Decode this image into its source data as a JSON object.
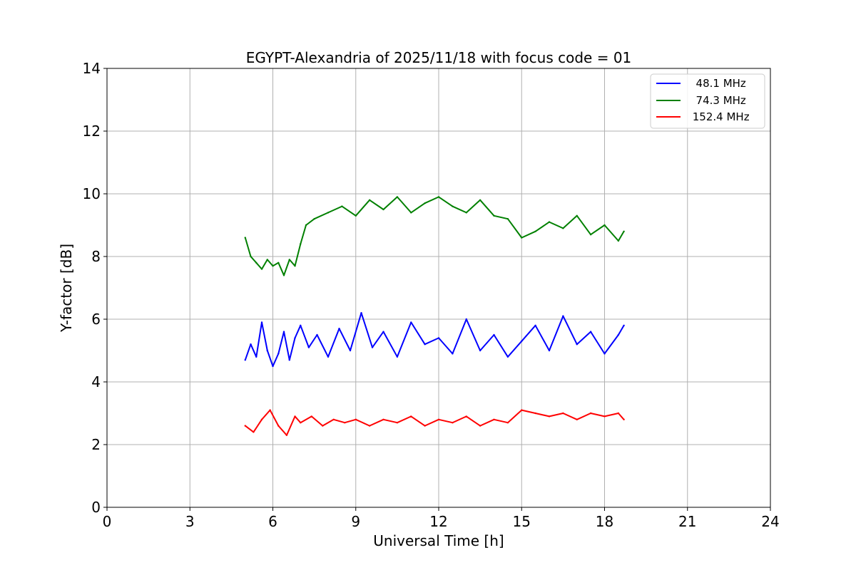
{
  "chart_data": {
    "type": "line",
    "title": "EGYPT-Alexandria of 2025/11/18 with focus code = 01",
    "xlabel": "Universal Time [h]",
    "ylabel": "Y-factor [dB]",
    "xlim": [
      0,
      24
    ],
    "ylim": [
      0,
      14
    ],
    "xticks": [
      0,
      3,
      6,
      9,
      12,
      15,
      18,
      21,
      24
    ],
    "yticks": [
      0,
      2,
      4,
      6,
      8,
      10,
      12,
      14
    ],
    "grid": true,
    "legend_position": "top-right",
    "series": [
      {
        "name": "  48.1 MHz",
        "color": "#0000ff",
        "x": [
          5.0,
          5.2,
          5.4,
          5.6,
          5.8,
          6.0,
          6.2,
          6.4,
          6.6,
          6.8,
          7.0,
          7.3,
          7.6,
          8.0,
          8.4,
          8.8,
          9.2,
          9.6,
          10.0,
          10.5,
          11.0,
          11.5,
          12.0,
          12.5,
          13.0,
          13.5,
          14.0,
          14.5,
          15.0,
          15.5,
          16.0,
          16.5,
          17.0,
          17.5,
          18.0,
          18.5,
          18.7
        ],
        "values": [
          4.7,
          5.2,
          4.8,
          5.9,
          5.0,
          4.5,
          4.9,
          5.6,
          4.7,
          5.4,
          5.8,
          5.1,
          5.5,
          4.8,
          5.7,
          5.0,
          6.2,
          5.1,
          5.6,
          4.8,
          5.9,
          5.2,
          5.4,
          4.9,
          6.0,
          5.0,
          5.5,
          4.8,
          5.3,
          5.8,
          5.0,
          6.1,
          5.2,
          5.6,
          4.9,
          5.5,
          5.8
        ]
      },
      {
        "name": "  74.3 MHz",
        "color": "#008000",
        "x": [
          5.0,
          5.2,
          5.4,
          5.6,
          5.8,
          6.0,
          6.2,
          6.4,
          6.6,
          6.8,
          7.0,
          7.2,
          7.5,
          8.0,
          8.5,
          9.0,
          9.5,
          10.0,
          10.5,
          11.0,
          11.5,
          12.0,
          12.5,
          13.0,
          13.5,
          14.0,
          14.5,
          15.0,
          15.5,
          16.0,
          16.5,
          17.0,
          17.5,
          18.0,
          18.5,
          18.7
        ],
        "values": [
          8.6,
          8.0,
          7.8,
          7.6,
          7.9,
          7.7,
          7.8,
          7.4,
          7.9,
          7.7,
          8.4,
          9.0,
          9.2,
          9.4,
          9.6,
          9.3,
          9.8,
          9.5,
          9.9,
          9.4,
          9.7,
          9.9,
          9.6,
          9.4,
          9.8,
          9.3,
          9.2,
          8.6,
          8.8,
          9.1,
          8.9,
          9.3,
          8.7,
          9.0,
          8.5,
          8.8
        ]
      },
      {
        "name": " 152.4 MHz",
        "color": "#ff0000",
        "x": [
          5.0,
          5.3,
          5.6,
          5.9,
          6.2,
          6.5,
          6.8,
          7.0,
          7.4,
          7.8,
          8.2,
          8.6,
          9.0,
          9.5,
          10.0,
          10.5,
          11.0,
          11.5,
          12.0,
          12.5,
          13.0,
          13.5,
          14.0,
          14.5,
          15.0,
          15.5,
          16.0,
          16.5,
          17.0,
          17.5,
          18.0,
          18.5,
          18.7
        ],
        "values": [
          2.6,
          2.4,
          2.8,
          3.1,
          2.6,
          2.3,
          2.9,
          2.7,
          2.9,
          2.6,
          2.8,
          2.7,
          2.8,
          2.6,
          2.8,
          2.7,
          2.9,
          2.6,
          2.8,
          2.7,
          2.9,
          2.6,
          2.8,
          2.7,
          3.1,
          3.0,
          2.9,
          3.0,
          2.8,
          3.0,
          2.9,
          3.0,
          2.8
        ]
      }
    ]
  }
}
